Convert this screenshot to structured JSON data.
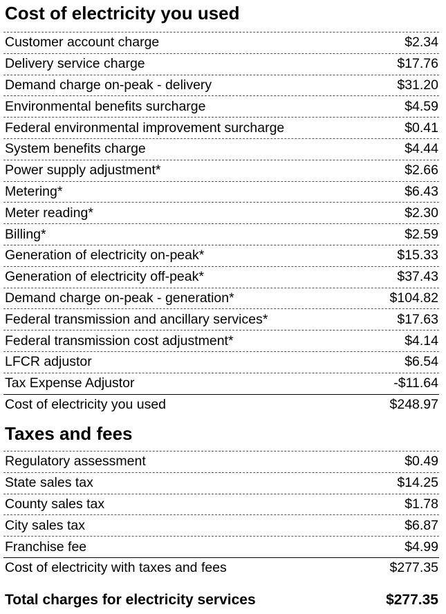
{
  "sections": [
    {
      "title": "Cost of electricity you used",
      "items": [
        {
          "label": "Customer account charge",
          "amount": "$2.34"
        },
        {
          "label": "Delivery service charge",
          "amount": "$17.76"
        },
        {
          "label": "Demand charge on-peak - delivery",
          "amount": "$31.20"
        },
        {
          "label": "Environmental benefits surcharge",
          "amount": "$4.59"
        },
        {
          "label": "Federal environmental improvement surcharge",
          "amount": "$0.41"
        },
        {
          "label": "System benefits charge",
          "amount": "$4.44"
        },
        {
          "label": "Power supply adjustment*",
          "amount": "$2.66"
        },
        {
          "label": "Metering*",
          "amount": "$6.43"
        },
        {
          "label": "Meter reading*",
          "amount": "$2.30"
        },
        {
          "label": "Billing*",
          "amount": "$2.59"
        },
        {
          "label": "Generation of electricity on-peak*",
          "amount": "$15.33"
        },
        {
          "label": "Generation of electricity off-peak*",
          "amount": "$37.43"
        },
        {
          "label": "Demand charge on-peak - generation*",
          "amount": "$104.82"
        },
        {
          "label": "Federal transmission and ancillary services*",
          "amount": "$17.63"
        },
        {
          "label": "Federal transmission cost adjustment*",
          "amount": "$4.14"
        },
        {
          "label": "LFCR adjustor",
          "amount": "$6.54"
        },
        {
          "label": "Tax Expense Adjustor",
          "amount": "-$11.64"
        }
      ],
      "subtotal": {
        "label": "Cost of electricity you used",
        "amount": "$248.97"
      }
    },
    {
      "title": "Taxes and fees",
      "items": [
        {
          "label": "Regulatory assessment",
          "amount": "$0.49"
        },
        {
          "label": "State sales tax",
          "amount": "$14.25"
        },
        {
          "label": "County sales tax",
          "amount": "$1.78"
        },
        {
          "label": "City sales tax",
          "amount": "$6.87"
        },
        {
          "label": "Franchise fee",
          "amount": "$4.99"
        }
      ],
      "subtotal": {
        "label": "Cost of electricity with taxes and fees",
        "amount": "$277.35"
      }
    }
  ],
  "total": {
    "label": "Total charges for electricity services",
    "amount": "$277.35"
  }
}
